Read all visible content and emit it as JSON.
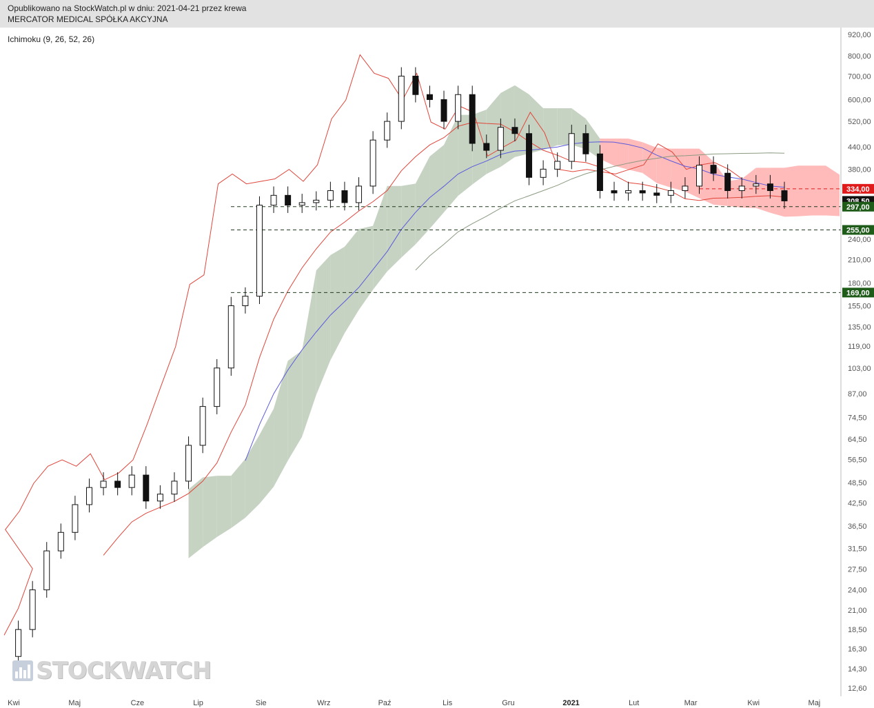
{
  "header": {
    "line1": "Opublikowano na StockWatch.pl w dniu: 2021-04-21 przez krewa",
    "line2": "MERCATOR MEDICAL SPÓŁKA AKCYJNA"
  },
  "indicator_label": "Ichimoku (9, 26, 52, 26)",
  "logo_text": "STOCKWATCH",
  "colors": {
    "kumo_bull": "#c3d1bf",
    "kumo_bear": "#ffb6b6",
    "tenkan": "#e0453a",
    "kijun": "#e0453a",
    "senkou_b_line": "#5a5adc",
    "long_ma": "#8a9a80",
    "candle_up": "#ffffff",
    "candle_down": "#111111"
  },
  "chart_data": {
    "type": "candlestick",
    "y_scale": "log",
    "ylim": [
      12.6,
      920
    ],
    "y_ticks": [
      "920,00",
      "800,00",
      "700,00",
      "600,00",
      "520,00",
      "440,00",
      "380,00",
      "334,00",
      "297,00",
      "255,00",
      "240,00",
      "210,00",
      "180,00",
      "155,00",
      "135,00",
      "119,00",
      "103,00",
      "87,00",
      "74,50",
      "64,50",
      "56,50",
      "48,50",
      "42,50",
      "36,50",
      "31,50",
      "27,50",
      "24,00",
      "21,00",
      "18,50",
      "16,30",
      "14,30",
      "12,60"
    ],
    "x_labels": [
      {
        "label": "Kwi",
        "bold": false
      },
      {
        "label": "Maj",
        "bold": false
      },
      {
        "label": "Cze",
        "bold": false
      },
      {
        "label": "Lip",
        "bold": false
      },
      {
        "label": "Sie",
        "bold": false
      },
      {
        "label": "Wrz",
        "bold": false
      },
      {
        "label": "Paź",
        "bold": false
      },
      {
        "label": "Lis",
        "bold": false
      },
      {
        "label": "Gru",
        "bold": false
      },
      {
        "label": "2021",
        "bold": true
      },
      {
        "label": "Lut",
        "bold": false
      },
      {
        "label": "Mar",
        "bold": false
      },
      {
        "label": "Kwi",
        "bold": false
      },
      {
        "label": "Maj",
        "bold": false
      }
    ],
    "price_tags": [
      {
        "label": "334,00",
        "value": 334,
        "color": "#e01b1b",
        "line": "dashed-red"
      },
      {
        "label": "308,50",
        "value": 308.5,
        "color": "#111111",
        "line": "none"
      },
      {
        "label": "297,00",
        "value": 297,
        "color": "#1f5c1a",
        "line": "dashed-dark"
      },
      {
        "label": "255,00",
        "value": 255,
        "color": "#1f5c1a",
        "line": "dashed-dark"
      },
      {
        "label": "169,00",
        "value": 169,
        "color": "#1f5c1a",
        "line": "dashed-dark"
      }
    ],
    "close_series": [
      {
        "d": "2020-04-01",
        "c": 15.5
      },
      {
        "d": "2020-04-08",
        "c": 18.5
      },
      {
        "d": "2020-04-15",
        "c": 24
      },
      {
        "d": "2020-04-22",
        "c": 31
      },
      {
        "d": "2020-04-29",
        "c": 35
      },
      {
        "d": "2020-05-06",
        "c": 42
      },
      {
        "d": "2020-05-13",
        "c": 47
      },
      {
        "d": "2020-05-20",
        "c": 49
      },
      {
        "d": "2020-05-27",
        "c": 47
      },
      {
        "d": "2020-06-03",
        "c": 51
      },
      {
        "d": "2020-06-10",
        "c": 43
      },
      {
        "d": "2020-06-17",
        "c": 45
      },
      {
        "d": "2020-06-24",
        "c": 49
      },
      {
        "d": "2020-07-01",
        "c": 62
      },
      {
        "d": "2020-07-08",
        "c": 80
      },
      {
        "d": "2020-07-15",
        "c": 103
      },
      {
        "d": "2020-07-22",
        "c": 155
      },
      {
        "d": "2020-07-29",
        "c": 165
      },
      {
        "d": "2020-08-05",
        "c": 300
      },
      {
        "d": "2020-08-12",
        "c": 320
      },
      {
        "d": "2020-08-19",
        "c": 300
      },
      {
        "d": "2020-08-26",
        "c": 305
      },
      {
        "d": "2020-09-02",
        "c": 310
      },
      {
        "d": "2020-09-09",
        "c": 330
      },
      {
        "d": "2020-09-16",
        "c": 305
      },
      {
        "d": "2020-09-23",
        "c": 340
      },
      {
        "d": "2020-09-30",
        "c": 460
      },
      {
        "d": "2020-10-07",
        "c": 520
      },
      {
        "d": "2020-10-14",
        "c": 700
      },
      {
        "d": "2020-10-21",
        "c": 620
      },
      {
        "d": "2020-10-28",
        "c": 600
      },
      {
        "d": "2020-11-04",
        "c": 520
      },
      {
        "d": "2020-11-11",
        "c": 620
      },
      {
        "d": "2020-11-18",
        "c": 450
      },
      {
        "d": "2020-11-25",
        "c": 430
      },
      {
        "d": "2020-12-02",
        "c": 500
      },
      {
        "d": "2020-12-09",
        "c": 480
      },
      {
        "d": "2020-12-16",
        "c": 360
      },
      {
        "d": "2020-12-23",
        "c": 380
      },
      {
        "d": "2020-12-30",
        "c": 400
      },
      {
        "d": "2021-01-06",
        "c": 480
      },
      {
        "d": "2021-01-13",
        "c": 420
      },
      {
        "d": "2021-01-20",
        "c": 330
      },
      {
        "d": "2021-01-27",
        "c": 325
      },
      {
        "d": "2021-02-03",
        "c": 330
      },
      {
        "d": "2021-02-10",
        "c": 325
      },
      {
        "d": "2021-02-17",
        "c": 320
      },
      {
        "d": "2021-02-24",
        "c": 330
      },
      {
        "d": "2021-03-03",
        "c": 340
      },
      {
        "d": "2021-03-10",
        "c": 390
      },
      {
        "d": "2021-03-17",
        "c": 370
      },
      {
        "d": "2021-03-24",
        "c": 330
      },
      {
        "d": "2021-03-31",
        "c": 340
      },
      {
        "d": "2021-04-07",
        "c": 345
      },
      {
        "d": "2021-04-14",
        "c": 330
      },
      {
        "d": "2021-04-21",
        "c": 308.5
      }
    ]
  }
}
